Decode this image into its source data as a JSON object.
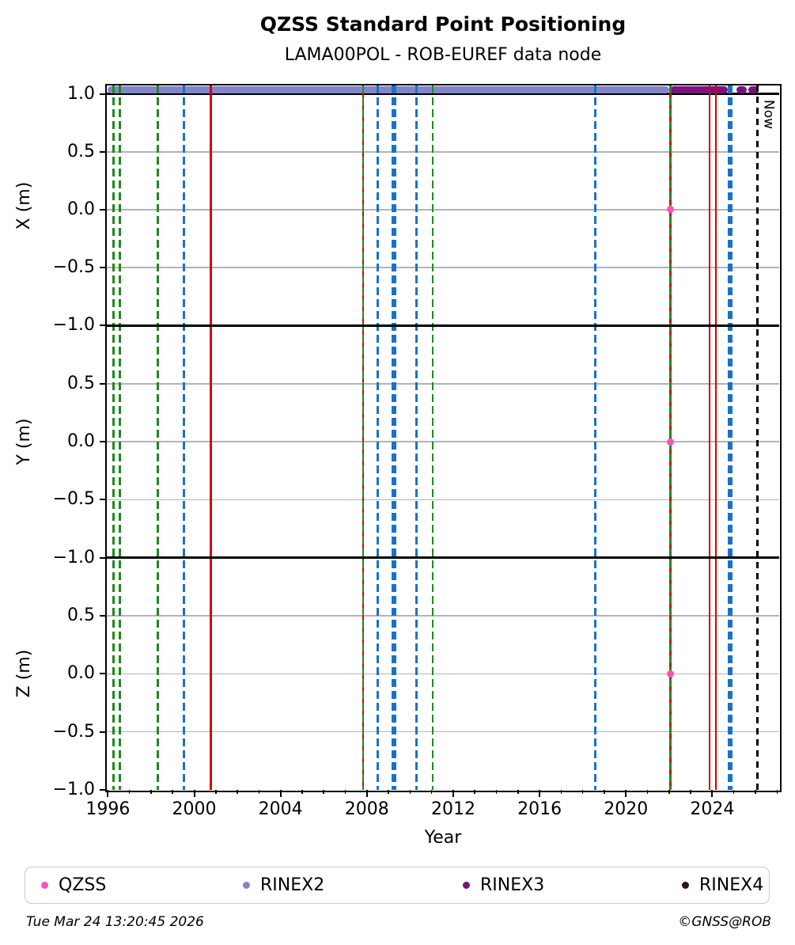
{
  "title": "QZSS Standard Point Positioning",
  "subtitle": "LAMA00POL - ROB-EUREF data node",
  "footer": {
    "timestamp": "Tue Mar 24 13:20:45 2026",
    "credit": "©GNSS@ROB"
  },
  "legend": [
    {
      "label": "QZSS",
      "color": "#fc53bb"
    },
    {
      "label": "RINEX2",
      "color": "#8285c9"
    },
    {
      "label": "RINEX3",
      "color": "#7d117d"
    },
    {
      "label": "RINEX4",
      "color": "#2d0f28"
    }
  ],
  "chart_data": {
    "type": "scatter",
    "xlabel": "Year",
    "xlim": [
      1995.95,
      2027.1
    ],
    "x_major_ticks": [
      1996,
      2000,
      2004,
      2008,
      2012,
      2016,
      2020,
      2024
    ],
    "x_minor_step": 1,
    "grid": "horizontal-only",
    "legend_position": "bottom",
    "now_line": {
      "x": 2026.1,
      "label": "Now"
    },
    "panels": [
      {
        "ylabel": "X (m)",
        "ylim": [
          -1.0,
          1.072
        ],
        "yticks": [
          1.0,
          0.5,
          0.0,
          -0.5,
          -1.0
        ],
        "hline": 1.0,
        "points": [
          {
            "series": "QZSS",
            "x": 2022.07,
            "y": 0.0
          }
        ]
      },
      {
        "ylabel": "Y (m)",
        "ylim": [
          -1.0,
          1.0
        ],
        "yticks": [
          0.5,
          0.0,
          -0.5,
          -1.0
        ],
        "points": [
          {
            "series": "QZSS",
            "x": 2022.07,
            "y": 0.0
          }
        ]
      },
      {
        "ylabel": "Z (m)",
        "ylim": [
          -1.0,
          1.0
        ],
        "yticks": [
          0.5,
          0.0,
          -0.5,
          -1.0
        ],
        "points": [
          {
            "series": "QZSS",
            "x": 2022.07,
            "y": 0.0
          }
        ]
      }
    ],
    "availability_bands": [
      {
        "series": "RINEX2",
        "start": 1996.0,
        "end": 2022.02,
        "y": 1.04
      },
      {
        "series": "RINEX3",
        "start": 2022.05,
        "end": 2024.72,
        "y": 1.04
      },
      {
        "series": "RINEX3",
        "start": 2025.12,
        "end": 2025.6,
        "y": 1.04
      },
      {
        "series": "RINEX3",
        "start": 2025.66,
        "end": 2026.15,
        "y": 1.04
      }
    ],
    "event_lines": [
      {
        "x": 1996.27,
        "style": "dashed",
        "color_key": "green"
      },
      {
        "x": 1996.55,
        "style": "dashed",
        "color_key": "green"
      },
      {
        "x": 1998.31,
        "style": "dashed",
        "color_key": "green"
      },
      {
        "x": 1999.52,
        "style": "dashed",
        "color_key": "blue"
      },
      {
        "x": 2000.76,
        "style": "solid",
        "color_key": "red"
      },
      {
        "x": 2007.83,
        "style": "solid+dashed",
        "color_key": "red+green"
      },
      {
        "x": 2008.5,
        "style": "dashed",
        "color_key": "blue"
      },
      {
        "x": 2009.25,
        "style": "dashed",
        "color_key": "blue",
        "thick": true
      },
      {
        "x": 2010.3,
        "style": "dashed",
        "color_key": "blue"
      },
      {
        "x": 2011.05,
        "style": "dashed",
        "color_key": "green"
      },
      {
        "x": 2018.58,
        "style": "dashed",
        "color_key": "blue"
      },
      {
        "x": 2022.07,
        "style": "solid+dashed",
        "color_key": "red+green"
      },
      {
        "x": 2023.88,
        "style": "solid",
        "color_key": "red"
      },
      {
        "x": 2024.17,
        "style": "solid",
        "color_key": "red"
      },
      {
        "x": 2024.82,
        "style": "dashed",
        "color_key": "blue",
        "thick": true
      }
    ],
    "colors": {
      "green": "#1e8b1e",
      "blue": "#1a72c8",
      "red": "#da0000",
      "black": "#000000",
      "grid": "#b4b4b4"
    }
  }
}
